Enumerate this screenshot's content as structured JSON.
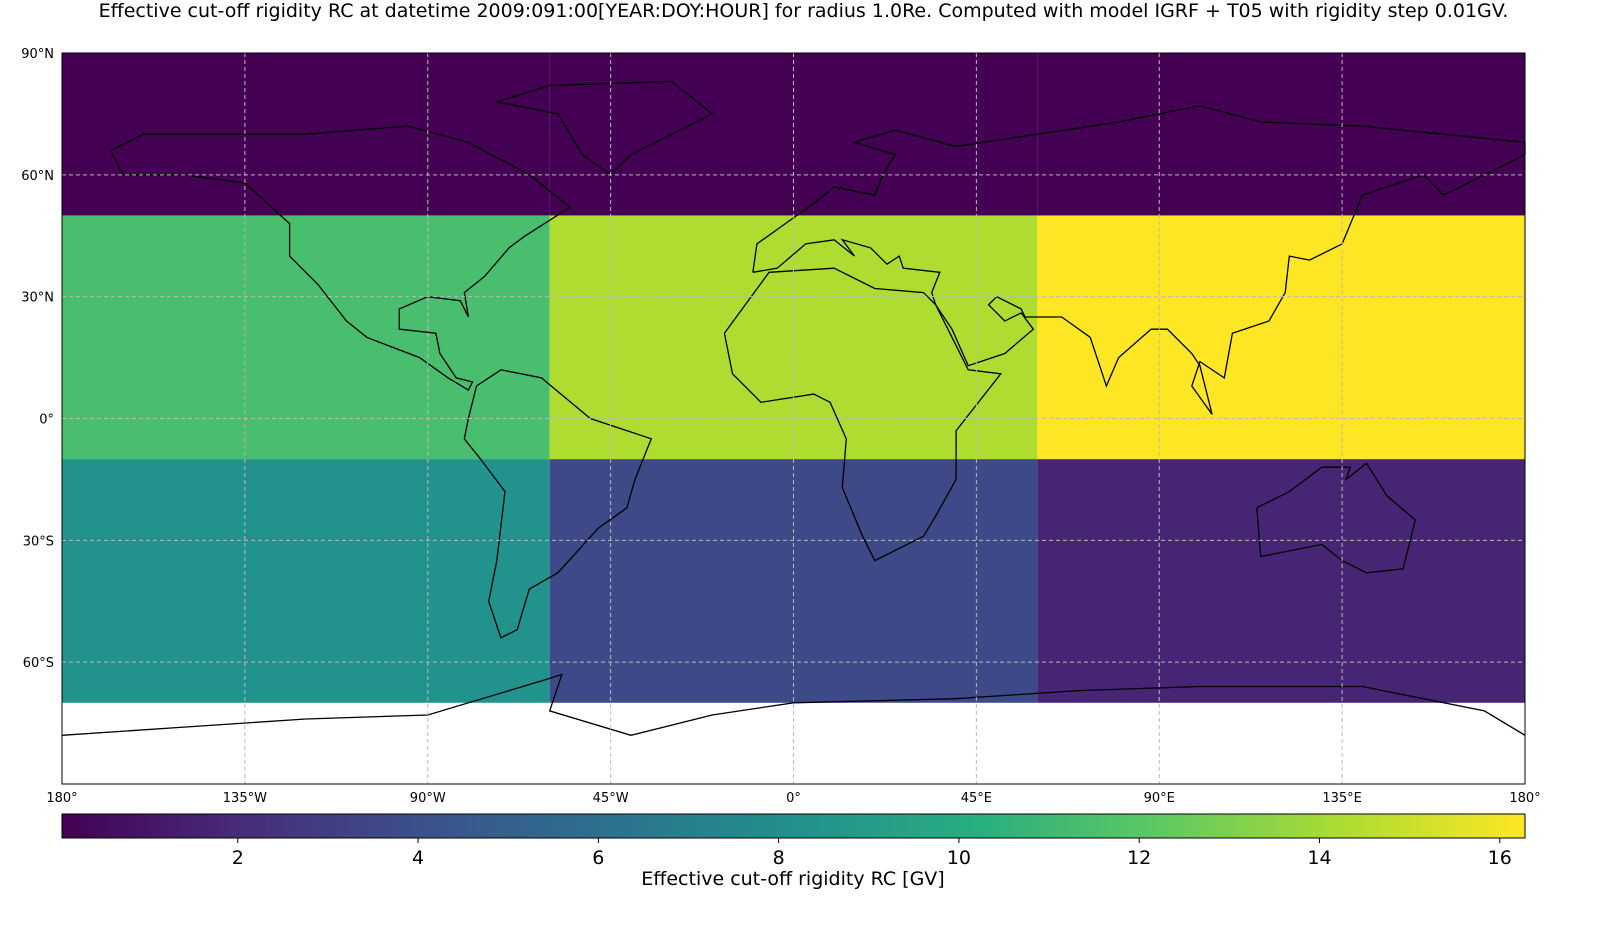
{
  "chart_data": {
    "type": "heatmap",
    "title": "Effective cut-off rigidity RC at datetime 2009:091:00[YEAR:DOY:HOUR] for radius 1.0Re. Computed with model IGRF + T05 with rigidity step 0.01GV.",
    "colorbar_label": "Effective cut-off rigidity RC [GV]",
    "lon_edges": [
      -180,
      -60,
      60,
      180
    ],
    "lat_edges": [
      -70,
      -10,
      50,
      90
    ],
    "values": [
      [
        8.2,
        3.6,
        1.7
      ],
      [
        11.4,
        14.3,
        16.28
      ],
      [
        0.05,
        0.05,
        0.05
      ]
    ],
    "xlim": [
      -180,
      180
    ],
    "ylim": [
      -90,
      90
    ],
    "xticks": [
      {
        "value": -180,
        "label": "180°"
      },
      {
        "value": -135,
        "label": "135°W"
      },
      {
        "value": -90,
        "label": "90°W"
      },
      {
        "value": -45,
        "label": "45°W"
      },
      {
        "value": 0,
        "label": "0°"
      },
      {
        "value": 45,
        "label": "45°E"
      },
      {
        "value": 90,
        "label": "90°E"
      },
      {
        "value": 135,
        "label": "135°E"
      },
      {
        "value": 180,
        "label": "180°"
      }
    ],
    "yticks": [
      {
        "value": -60,
        "label": "60°S"
      },
      {
        "value": -30,
        "label": "30°S"
      },
      {
        "value": 0,
        "label": "0°"
      },
      {
        "value": 30,
        "label": "30°N"
      },
      {
        "value": 60,
        "label": "60°N"
      },
      {
        "value": 90,
        "label": "90°N"
      }
    ],
    "clim": [
      0.05,
      16.28
    ],
    "cticks": [
      2,
      4,
      6,
      8,
      10,
      12,
      14,
      16
    ],
    "colormap": "viridis",
    "grid": true,
    "coastlines": true
  }
}
